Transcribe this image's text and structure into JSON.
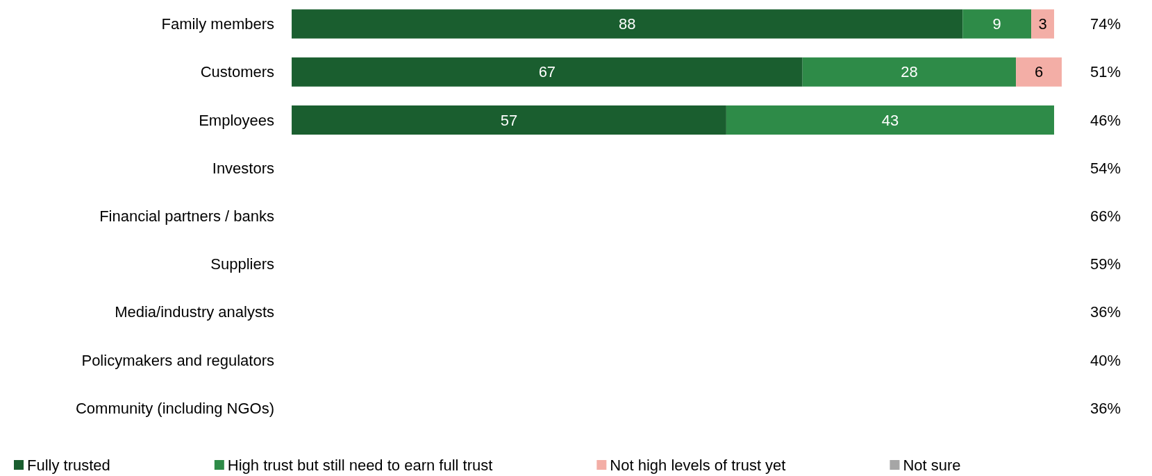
{
  "chart_data": {
    "type": "bar",
    "orientation": "horizontal",
    "stacked": true,
    "data_labels": true,
    "legend": "bottom",
    "categories": [
      "Family members",
      "Customers",
      "Employees",
      "Investors",
      "Financial partners / banks",
      "Suppliers",
      "Media/industry analysts",
      "Policymakers and regulators",
      "Community (including NGOs)"
    ],
    "series": [
      {
        "name": "Fully trusted",
        "color": "#1a5e2f",
        "values": [
          88,
          67,
          57,
          null,
          null,
          null,
          null,
          null,
          null
        ]
      },
      {
        "name": "High trust but still need to earn full trust",
        "color": "#2e8b48",
        "values": [
          9,
          28,
          43,
          null,
          null,
          null,
          null,
          null,
          null
        ]
      },
      {
        "name": "Not high levels of trust yet",
        "color": "#f3aea6",
        "values": [
          3,
          6,
          null,
          null,
          null,
          null,
          null,
          null,
          null
        ]
      },
      {
        "name": "Not sure",
        "color": "#a6a6a6",
        "values": [
          null,
          null,
          null,
          null,
          null,
          null,
          null,
          null,
          null
        ]
      }
    ],
    "annotations": [
      "74%",
      "51%",
      "46%",
      "54%",
      "66%",
      "59%",
      "36%",
      "40%",
      "36%"
    ]
  }
}
